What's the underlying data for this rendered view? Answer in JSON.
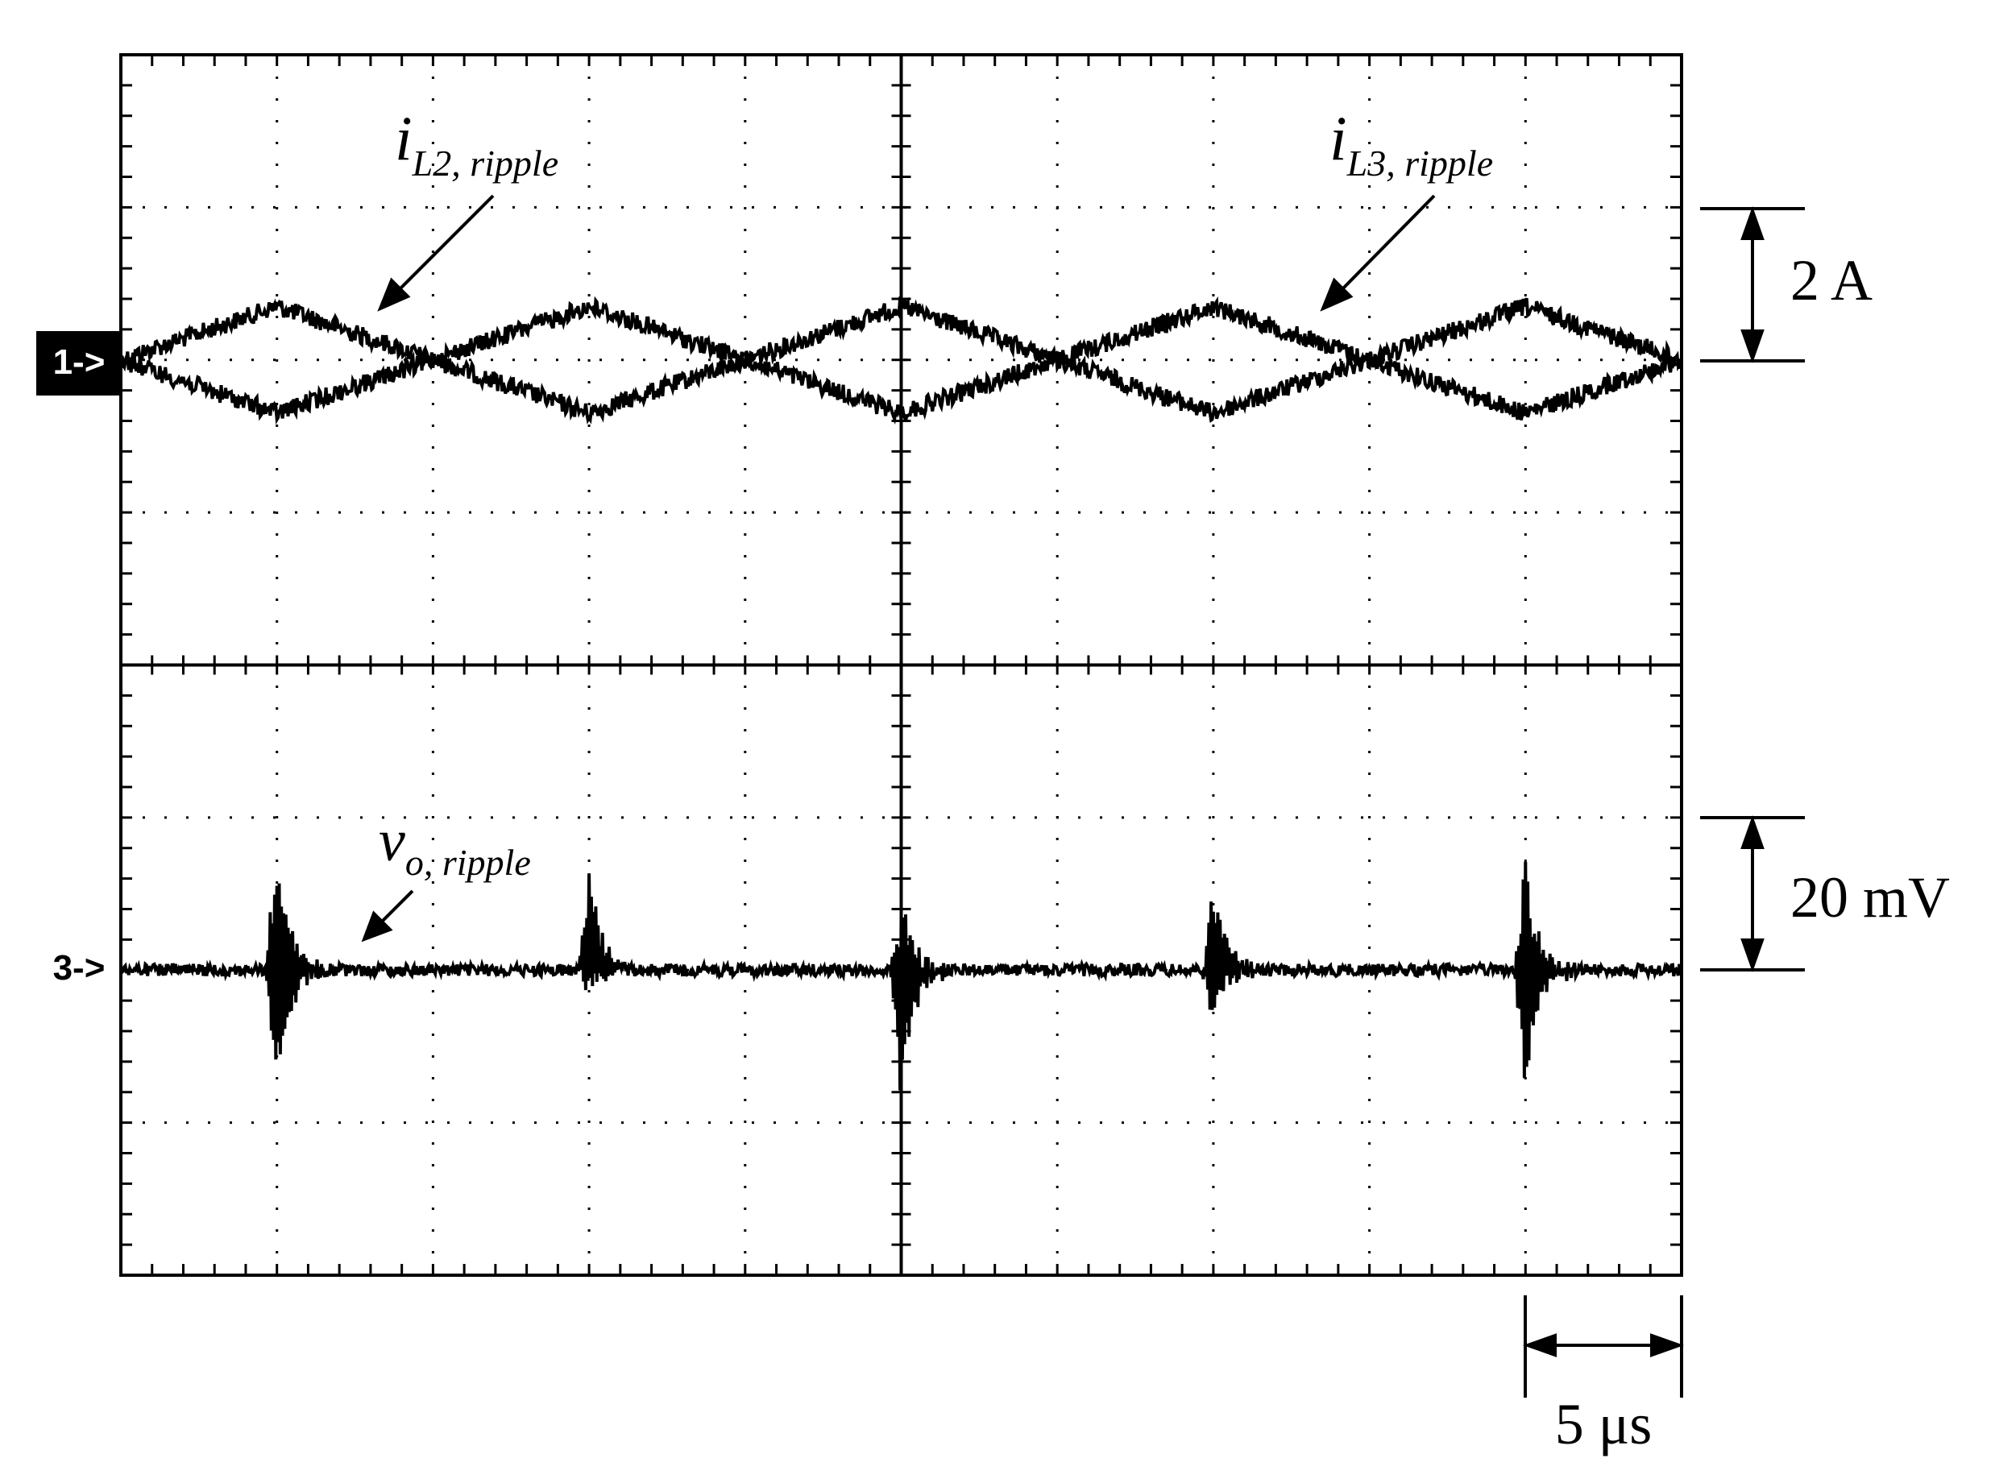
{
  "chart_data": {
    "type": "line",
    "grid": true,
    "x": {
      "divisions": 10,
      "minor_per_division": 5,
      "scale_label": "5 μs",
      "scale_us_per_div": 5,
      "range_us": [
        0,
        50
      ]
    },
    "y": {
      "divisions": 8,
      "minor_per_division": 5
    },
    "channels": [
      {
        "marker": "1->",
        "scale_label": "2 A",
        "level_div": 2,
        "marker_inverted": true
      },
      {
        "marker": "3->",
        "scale_label": "20 mV",
        "level_div": 6,
        "marker_inverted": false
      }
    ],
    "series": [
      {
        "name": "i_L2,ripple",
        "name_main": "i",
        "name_sub": "L2, ripple",
        "channel": 0,
        "kind": "triangle",
        "period_us": 20,
        "phase_us": 5,
        "amplitude_div": 0.35,
        "noise_div": 0.06
      },
      {
        "name": "i_L3,ripple",
        "name_main": "i",
        "name_sub": "L3, ripple",
        "channel": 0,
        "kind": "triangle",
        "period_us": 20,
        "phase_us": 15,
        "amplitude_div": 0.35,
        "noise_div": 0.06
      },
      {
        "name": "v_o,ripple",
        "name_main": "v",
        "name_sub": "o, ripple",
        "channel": 1,
        "kind": "spikes",
        "noise_div": 0.04,
        "spikes_us": [
          5,
          15,
          25,
          35,
          45
        ],
        "spike_pos_div": [
          0.9,
          0.7,
          0.5,
          0.6,
          0.75
        ],
        "spike_neg_div": [
          0.85,
          0.15,
          0.9,
          0.35,
          0.85
        ]
      }
    ],
    "colors": {
      "trace": "#000000",
      "grid": "#000000",
      "background": "#ffffff"
    }
  }
}
